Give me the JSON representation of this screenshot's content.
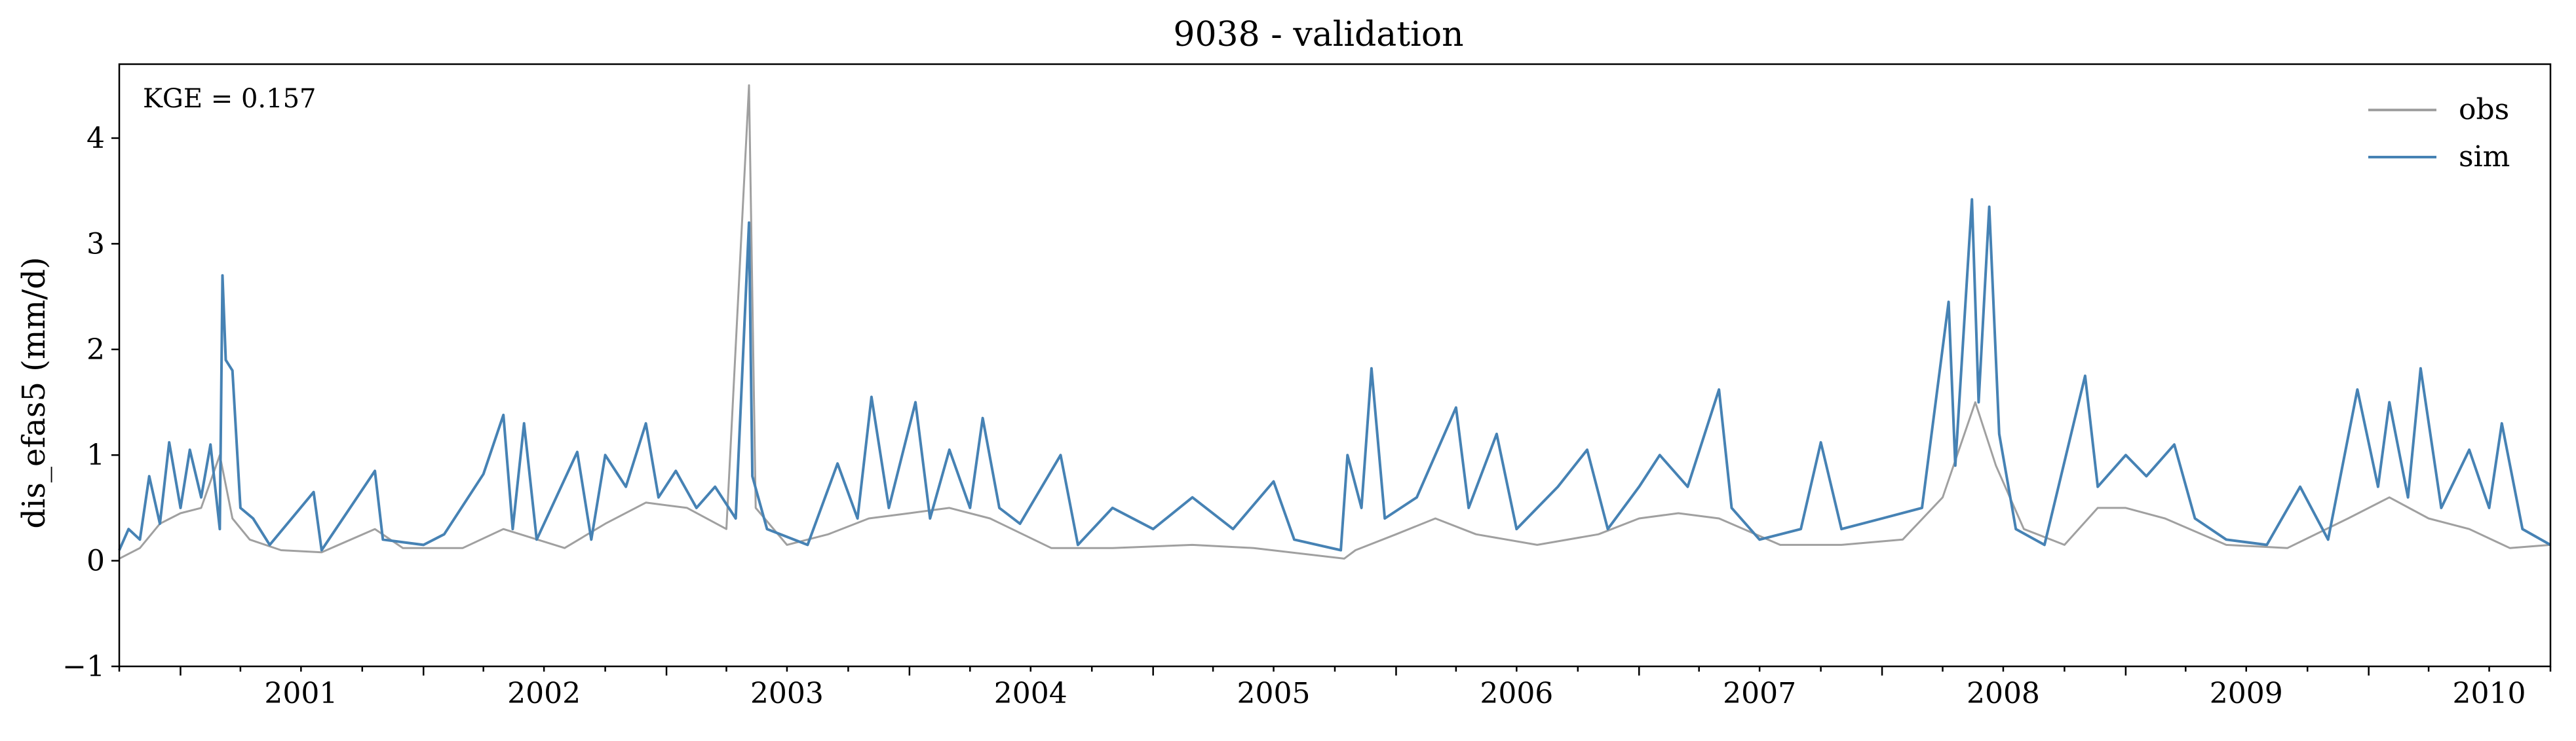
{
  "chart_data": {
    "type": "line",
    "title": "9038 - validation",
    "xlabel": "",
    "ylabel": "dis_efas5 (mm/d)",
    "annotation": "KGE = 0.157",
    "xlim": [
      "2000-10-01",
      "2010-10-01"
    ],
    "ylim": [
      -1,
      4.7
    ],
    "yticks": [
      -1,
      0,
      1,
      2,
      3,
      4
    ],
    "ytick_labels": [
      "−1",
      "0",
      "1",
      "2",
      "3",
      "4"
    ],
    "xtick_labels": [
      "2001",
      "2002",
      "2003",
      "2004",
      "2005",
      "2006",
      "2007",
      "2008",
      "2009",
      "2010"
    ],
    "grid": false,
    "legend": "top-right",
    "series": [
      {
        "name": "obs",
        "color": "#a0a0a0",
        "points": [
          [
            "2000-10-01",
            0.02
          ],
          [
            "2000-11-01",
            0.12
          ],
          [
            "2000-12-01",
            0.35
          ],
          [
            "2001-01-01",
            0.45
          ],
          [
            "2001-02-01",
            0.5
          ],
          [
            "2001-03-01",
            1.0
          ],
          [
            "2001-03-20",
            0.4
          ],
          [
            "2001-04-15",
            0.2
          ],
          [
            "2001-06-01",
            0.1
          ],
          [
            "2001-08-01",
            0.08
          ],
          [
            "2001-10-20",
            0.3
          ],
          [
            "2001-12-01",
            0.12
          ],
          [
            "2002-03-01",
            0.12
          ],
          [
            "2002-05-01",
            0.3
          ],
          [
            "2002-08-01",
            0.12
          ],
          [
            "2002-10-01",
            0.35
          ],
          [
            "2002-12-01",
            0.55
          ],
          [
            "2003-02-01",
            0.5
          ],
          [
            "2003-04-01",
            0.3
          ],
          [
            "2003-05-05",
            4.5
          ],
          [
            "2003-05-15",
            0.5
          ],
          [
            "2003-07-01",
            0.15
          ],
          [
            "2003-09-01",
            0.25
          ],
          [
            "2003-11-01",
            0.4
          ],
          [
            "2004-01-01",
            0.45
          ],
          [
            "2004-03-01",
            0.5
          ],
          [
            "2004-05-01",
            0.4
          ],
          [
            "2004-08-01",
            0.12
          ],
          [
            "2004-11-01",
            0.12
          ],
          [
            "2005-03-01",
            0.15
          ],
          [
            "2005-06-01",
            0.12
          ],
          [
            "2005-10-15",
            0.02
          ],
          [
            "2005-11-01",
            0.1
          ],
          [
            "2006-01-01",
            0.25
          ],
          [
            "2006-03-01",
            0.4
          ],
          [
            "2006-05-01",
            0.25
          ],
          [
            "2006-08-01",
            0.15
          ],
          [
            "2006-11-01",
            0.25
          ],
          [
            "2007-01-01",
            0.4
          ],
          [
            "2007-03-01",
            0.45
          ],
          [
            "2007-05-01",
            0.4
          ],
          [
            "2007-08-01",
            0.15
          ],
          [
            "2007-11-01",
            0.15
          ],
          [
            "2008-02-01",
            0.2
          ],
          [
            "2008-04-01",
            0.6
          ],
          [
            "2008-05-20",
            1.5
          ],
          [
            "2008-06-20",
            0.9
          ],
          [
            "2008-08-01",
            0.3
          ],
          [
            "2008-10-01",
            0.15
          ],
          [
            "2008-11-20",
            0.5
          ],
          [
            "2009-01-01",
            0.5
          ],
          [
            "2009-03-01",
            0.4
          ],
          [
            "2009-06-01",
            0.15
          ],
          [
            "2009-09-01",
            0.12
          ],
          [
            "2009-12-01",
            0.4
          ],
          [
            "2010-02-01",
            0.6
          ],
          [
            "2010-04-01",
            0.4
          ],
          [
            "2010-06-01",
            0.3
          ],
          [
            "2010-08-01",
            0.12
          ],
          [
            "2010-10-01",
            0.15
          ]
        ]
      },
      {
        "name": "sim",
        "color": "#4682b4",
        "points": [
          [
            "2000-10-01",
            0.1
          ],
          [
            "2000-10-15",
            0.3
          ],
          [
            "2000-11-01",
            0.2
          ],
          [
            "2000-11-15",
            0.8
          ],
          [
            "2000-12-01",
            0.35
          ],
          [
            "2000-12-15",
            1.12
          ],
          [
            "2001-01-01",
            0.5
          ],
          [
            "2001-01-15",
            1.05
          ],
          [
            "2001-02-01",
            0.6
          ],
          [
            "2001-02-15",
            1.1
          ],
          [
            "2001-03-01",
            0.3
          ],
          [
            "2001-03-05",
            2.7
          ],
          [
            "2001-03-10",
            1.9
          ],
          [
            "2001-03-20",
            1.8
          ],
          [
            "2001-04-01",
            0.5
          ],
          [
            "2001-04-20",
            0.4
          ],
          [
            "2001-05-15",
            0.15
          ],
          [
            "2001-07-20",
            0.65
          ],
          [
            "2001-08-01",
            0.1
          ],
          [
            "2001-10-20",
            0.85
          ],
          [
            "2001-11-01",
            0.2
          ],
          [
            "2002-01-01",
            0.15
          ],
          [
            "2002-02-01",
            0.25
          ],
          [
            "2002-04-01",
            0.82
          ],
          [
            "2002-05-01",
            1.38
          ],
          [
            "2002-05-15",
            0.3
          ],
          [
            "2002-06-01",
            1.3
          ],
          [
            "2002-06-20",
            0.2
          ],
          [
            "2002-08-20",
            1.03
          ],
          [
            "2002-09-10",
            0.2
          ],
          [
            "2002-10-01",
            1.0
          ],
          [
            "2002-11-01",
            0.7
          ],
          [
            "2002-12-01",
            1.3
          ],
          [
            "2002-12-20",
            0.6
          ],
          [
            "2003-01-15",
            0.85
          ],
          [
            "2003-02-15",
            0.5
          ],
          [
            "2003-03-15",
            0.7
          ],
          [
            "2003-04-15",
            0.4
          ],
          [
            "2003-05-05",
            3.2
          ],
          [
            "2003-05-10",
            0.8
          ],
          [
            "2003-06-01",
            0.3
          ],
          [
            "2003-08-01",
            0.15
          ],
          [
            "2003-09-15",
            0.92
          ],
          [
            "2003-10-15",
            0.4
          ],
          [
            "2003-11-05",
            1.55
          ],
          [
            "2003-12-01",
            0.5
          ],
          [
            "2004-01-10",
            1.5
          ],
          [
            "2004-02-01",
            0.4
          ],
          [
            "2004-03-01",
            1.05
          ],
          [
            "2004-04-01",
            0.5
          ],
          [
            "2004-04-20",
            1.35
          ],
          [
            "2004-05-15",
            0.5
          ],
          [
            "2004-06-15",
            0.35
          ],
          [
            "2004-08-15",
            1.0
          ],
          [
            "2004-09-10",
            0.15
          ],
          [
            "2004-11-01",
            0.5
          ],
          [
            "2005-01-01",
            0.3
          ],
          [
            "2005-03-01",
            0.6
          ],
          [
            "2005-05-01",
            0.3
          ],
          [
            "2005-07-01",
            0.75
          ],
          [
            "2005-08-01",
            0.2
          ],
          [
            "2005-10-10",
            0.1
          ],
          [
            "2005-10-20",
            1.0
          ],
          [
            "2005-11-10",
            0.5
          ],
          [
            "2005-11-25",
            1.82
          ],
          [
            "2005-12-15",
            0.4
          ],
          [
            "2006-02-01",
            0.6
          ],
          [
            "2006-04-01",
            1.45
          ],
          [
            "2006-04-20",
            0.5
          ],
          [
            "2006-06-01",
            1.2
          ],
          [
            "2006-07-01",
            0.3
          ],
          [
            "2006-09-01",
            0.7
          ],
          [
            "2006-10-15",
            1.05
          ],
          [
            "2006-11-15",
            0.3
          ],
          [
            "2007-01-01",
            0.7
          ],
          [
            "2007-02-01",
            1.0
          ],
          [
            "2007-03-15",
            0.7
          ],
          [
            "2007-05-01",
            1.62
          ],
          [
            "2007-05-20",
            0.5
          ],
          [
            "2007-07-01",
            0.2
          ],
          [
            "2007-09-01",
            0.3
          ],
          [
            "2007-10-01",
            1.12
          ],
          [
            "2007-11-01",
            0.3
          ],
          [
            "2008-01-01",
            0.4
          ],
          [
            "2008-03-01",
            0.5
          ],
          [
            "2008-04-10",
            2.45
          ],
          [
            "2008-04-20",
            0.9
          ],
          [
            "2008-05-15",
            3.42
          ],
          [
            "2008-05-25",
            1.5
          ],
          [
            "2008-06-10",
            3.35
          ],
          [
            "2008-06-25",
            1.2
          ],
          [
            "2008-07-20",
            0.3
          ],
          [
            "2008-09-01",
            0.15
          ],
          [
            "2008-11-01",
            1.75
          ],
          [
            "2008-11-20",
            0.7
          ],
          [
            "2009-01-01",
            1.0
          ],
          [
            "2009-02-01",
            0.8
          ],
          [
            "2009-03-15",
            1.1
          ],
          [
            "2009-04-15",
            0.4
          ],
          [
            "2009-06-01",
            0.2
          ],
          [
            "2009-08-01",
            0.15
          ],
          [
            "2009-09-20",
            0.7
          ],
          [
            "2009-11-01",
            0.2
          ],
          [
            "2009-12-15",
            1.62
          ],
          [
            "2010-01-15",
            0.7
          ],
          [
            "2010-02-01",
            1.5
          ],
          [
            "2010-03-01",
            0.6
          ],
          [
            "2010-03-20",
            1.82
          ],
          [
            "2010-04-20",
            0.5
          ],
          [
            "2010-06-01",
            1.05
          ],
          [
            "2010-07-01",
            0.5
          ],
          [
            "2010-07-20",
            1.3
          ],
          [
            "2010-08-20",
            0.3
          ],
          [
            "2010-10-01",
            0.15
          ]
        ]
      }
    ]
  }
}
